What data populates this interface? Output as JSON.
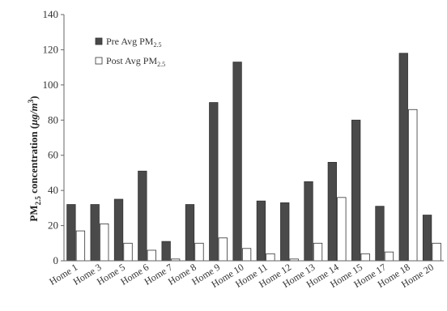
{
  "chart_data": {
    "type": "bar",
    "title": "",
    "xlabel": "",
    "ylabel": "PM2.5 concentration (μg/m³)",
    "ylabel_parts": {
      "a": "PM",
      "a_sub": "2.5",
      "b": " concentration (",
      "mu": "μ",
      "c": "g/m",
      "c_sup": "3",
      "d": ")"
    },
    "ylim": [
      0,
      140
    ],
    "yticks": [
      0,
      20,
      40,
      60,
      80,
      100,
      120,
      140
    ],
    "grid": false,
    "legend_position": "top-left",
    "categories": [
      "Home 1",
      "Home 3",
      "Home 5",
      "Home 6",
      "Home 7",
      "Home 8",
      "Home 9",
      "Home 10",
      "Home 11",
      "Home 12",
      "Home 13",
      "Home 14",
      "Home 15",
      "Home 17",
      "Home 18",
      "Home 20"
    ],
    "series": [
      {
        "name": "Pre Avg PM2.5",
        "name_main": "Pre Avg PM",
        "name_sub": "2.5",
        "color": "#4a4a4a",
        "values": [
          32,
          32,
          35,
          51,
          11,
          32,
          90,
          113,
          34,
          33,
          45,
          56,
          80,
          31,
          118,
          26
        ]
      },
      {
        "name": "Post Avg PM2.5",
        "name_main": "Post Avg PM",
        "name_sub": "2.5",
        "color": "#ffffff",
        "values": [
          17,
          21,
          10,
          6,
          1,
          10,
          13,
          7,
          4,
          1,
          10,
          36,
          4,
          5,
          86,
          10
        ]
      }
    ]
  }
}
